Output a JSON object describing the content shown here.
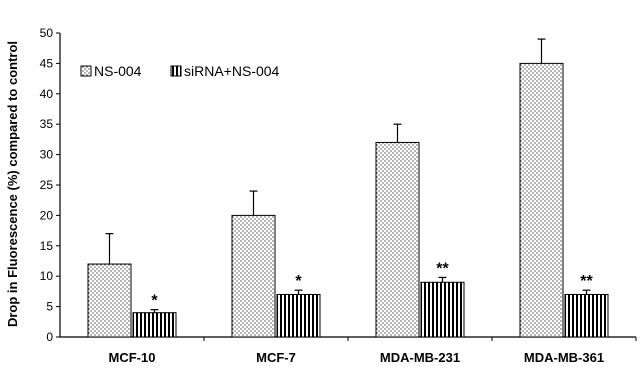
{
  "chart_data": {
    "type": "bar",
    "title": "",
    "xlabel": "",
    "ylabel": "Drop in Fluorescence (%) compared to control",
    "ylim": [
      0,
      50
    ],
    "yticks": [
      0,
      5,
      10,
      15,
      20,
      25,
      30,
      35,
      40,
      45,
      50
    ],
    "grid": false,
    "legend_position": "top-left",
    "categories": [
      "MCF-10",
      "MCF-7",
      "MDA-MB-231",
      "MDA-MB-361"
    ],
    "series": [
      {
        "name": "NS-004",
        "pattern": "dots",
        "values": [
          12,
          20,
          32,
          45
        ],
        "errors": [
          5,
          4,
          3,
          4
        ]
      },
      {
        "name": "siRNA+NS-004",
        "pattern": "vertical-stripes",
        "values": [
          4,
          7,
          9,
          7
        ],
        "errors": [
          0.5,
          0.7,
          0.8,
          0.7
        ],
        "significance": [
          "*",
          "*",
          "**",
          "**"
        ]
      }
    ]
  }
}
